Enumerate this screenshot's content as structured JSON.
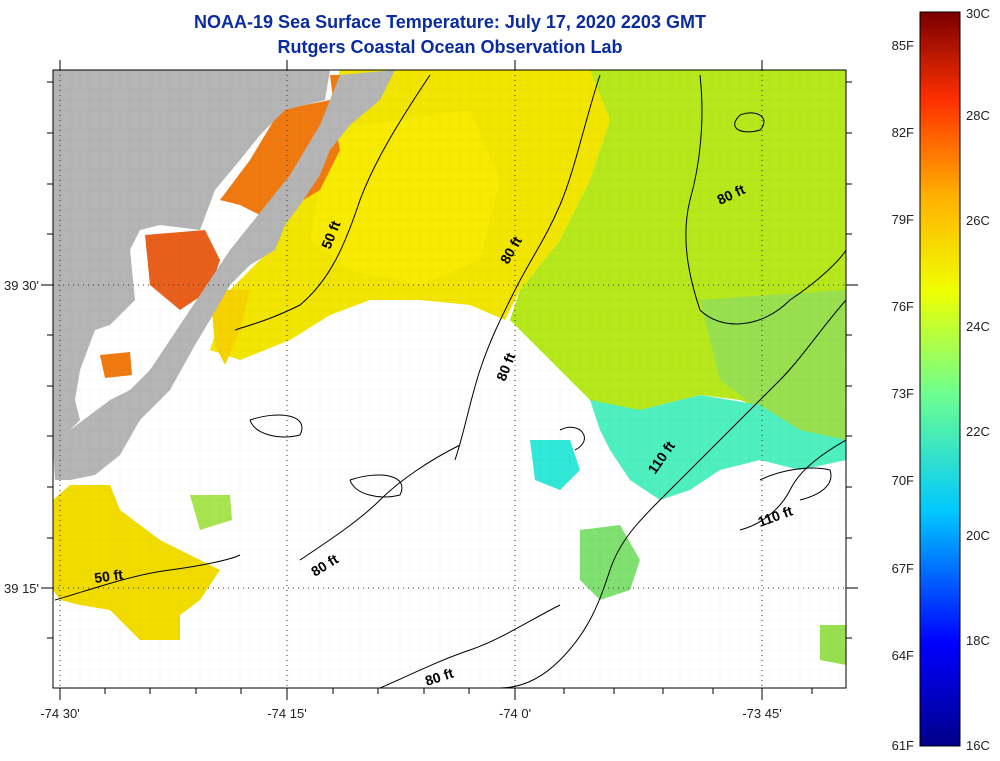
{
  "header": {
    "title": "NOAA-19 Sea Surface Temperature:  July 17, 2020 2203 GMT",
    "subtitle": "Rutgers Coastal Ocean Observation Lab"
  },
  "map": {
    "lon_ticks": [
      "-74 30'",
      "-74 15'",
      "-74 0'",
      "-73 45'"
    ],
    "lat_ticks": [
      "39 30'",
      "39 15'"
    ],
    "contour_labels": [
      "50 ft",
      "80 ft",
      "80 ft",
      "80 ft",
      "110 ft",
      "110 ft",
      "50 ft",
      "80 ft",
      "80 ft"
    ],
    "colors": {
      "land": "#b5b5b5",
      "no_data": "#ffffff",
      "contour": "#000000"
    }
  },
  "colorbar": {
    "fahrenheit_labels": [
      "85F",
      "82F",
      "79F",
      "76F",
      "73F",
      "70F",
      "67F",
      "64F",
      "61F"
    ],
    "celsius_labels": [
      "30C",
      "28C",
      "26C",
      "24C",
      "22C",
      "20C",
      "18C",
      "16C"
    ],
    "colors": [
      "#00008a",
      "#0000ff",
      "#00c8ff",
      "#6dff8f",
      "#f0ff00",
      "#ffb000",
      "#ff3000",
      "#7a0000"
    ]
  }
}
